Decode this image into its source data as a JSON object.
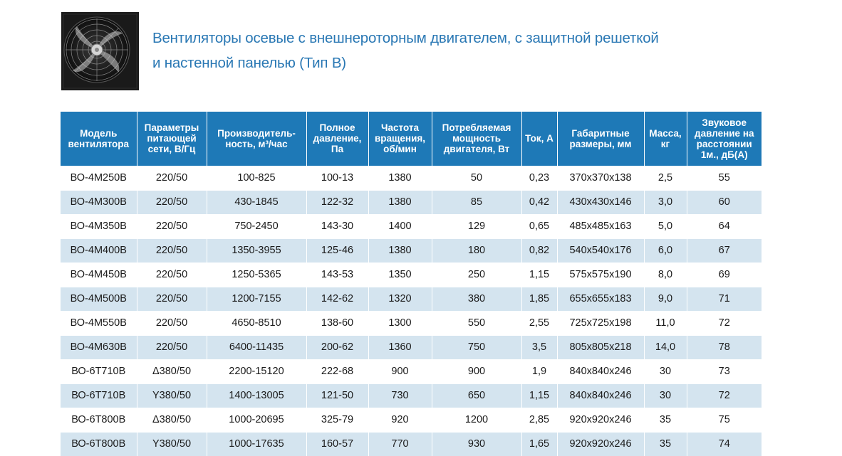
{
  "title_lines": [
    "Вентиляторы осевые с внешнероторным двигателем, с защитной решеткой",
    "и настенной панелью (Тип В)"
  ],
  "product_image": {
    "icon": "axial-fan-with-wall-panel"
  },
  "colors": {
    "header_bg": "#1e79b7",
    "title": "#2a78b4",
    "stripe": "#d4e4ef"
  },
  "table": {
    "headers": [
      "Модель вентилятора",
      "Параметры питающей сети, В/Гц",
      "Производитель-ность, м³/час",
      "Полное давление, Па",
      "Частота вращения, об/мин",
      "Потребляемая мощность двигателя, Вт",
      "Ток, А",
      "Габаритные размеры, мм",
      "Масса, кг",
      "Звуковое давление на расстоянии 1м., дБ(А)"
    ],
    "rows": [
      [
        "ВО-4М250В",
        "220/50",
        "100-825",
        "100-13",
        "1380",
        "50",
        "0,23",
        "370x370x138",
        "2,5",
        "55"
      ],
      [
        "ВО-4М300В",
        "220/50",
        "430-1845",
        "122-32",
        "1380",
        "85",
        "0,42",
        "430x430x146",
        "3,0",
        "60"
      ],
      [
        "ВО-4М350В",
        "220/50",
        "750-2450",
        "143-30",
        "1400",
        "129",
        "0,65",
        "485x485x163",
        "5,0",
        "64"
      ],
      [
        "ВО-4М400В",
        "220/50",
        "1350-3955",
        "125-46",
        "1380",
        "180",
        "0,82",
        "540x540x176",
        "6,0",
        "67"
      ],
      [
        "ВО-4М450В",
        "220/50",
        "1250-5365",
        "143-53",
        "1350",
        "250",
        "1,15",
        "575x575x190",
        "8,0",
        "69"
      ],
      [
        "ВО-4М500В",
        "220/50",
        "1200-7155",
        "142-62",
        "1320",
        "380",
        "1,85",
        "655x655x183",
        "9,0",
        "71"
      ],
      [
        "ВО-4М550В",
        "220/50",
        "4650-8510",
        "138-60",
        "1300",
        "550",
        "2,55",
        "725x725x198",
        "11,0",
        "72"
      ],
      [
        "ВО-4М630В",
        "220/50",
        "6400-11435",
        "200-62",
        "1360",
        "750",
        "3,5",
        "805x805x218",
        "14,0",
        "78"
      ],
      [
        "ВО-6Т710В",
        "Δ380/50",
        "2200-15120",
        "222-68",
        "900",
        "900",
        "1,9",
        "840x840x246",
        "30",
        "73"
      ],
      [
        "ВО-6Т710В",
        "Y380/50",
        "1400-13005",
        "121-50",
        "730",
        "650",
        "1,15",
        "840x840x246",
        "30",
        "72"
      ],
      [
        "ВО-6Т800В",
        "Δ380/50",
        "1000-20695",
        "325-79",
        "920",
        "1200",
        "2,85",
        "920x920x246",
        "35",
        "75"
      ],
      [
        "ВО-6Т800В",
        "Y380/50",
        "1000-17635",
        "160-57",
        "770",
        "930",
        "1,65",
        "920x920x246",
        "35",
        "74"
      ]
    ]
  }
}
